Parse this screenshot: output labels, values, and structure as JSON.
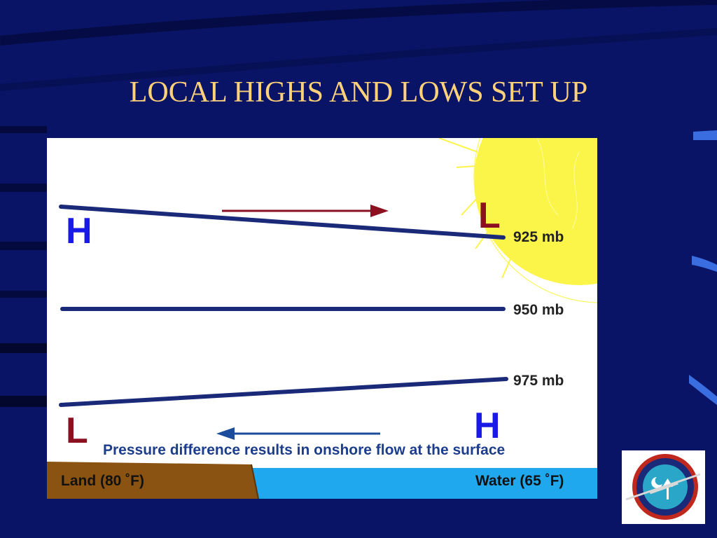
{
  "slide": {
    "title": "LOCAL HIGHS AND LOWS SET UP",
    "colors": {
      "background": "#0a1466",
      "title": "#ffd27a"
    }
  },
  "diagram": {
    "pressure_levels": [
      {
        "label": "925 mb"
      },
      {
        "label": "950 mb"
      },
      {
        "label": "975 mb"
      }
    ],
    "upper": {
      "left_label": "H",
      "right_label": "L"
    },
    "lower": {
      "left_label": "L",
      "right_label": "H"
    },
    "caption": "Pressure difference results in onshore flow at the surface",
    "land_label": "Land (80 ˚F)",
    "water_label": "Water (65 ˚F)",
    "colors": {
      "high": "#1a1ae6",
      "low": "#8b1020",
      "isobar": "#1a2a78",
      "land": "#8b5312",
      "water": "#20a8ef",
      "sun": "#fbf54a"
    }
  },
  "logo": {
    "icon": "us-soaring-team-logo"
  }
}
